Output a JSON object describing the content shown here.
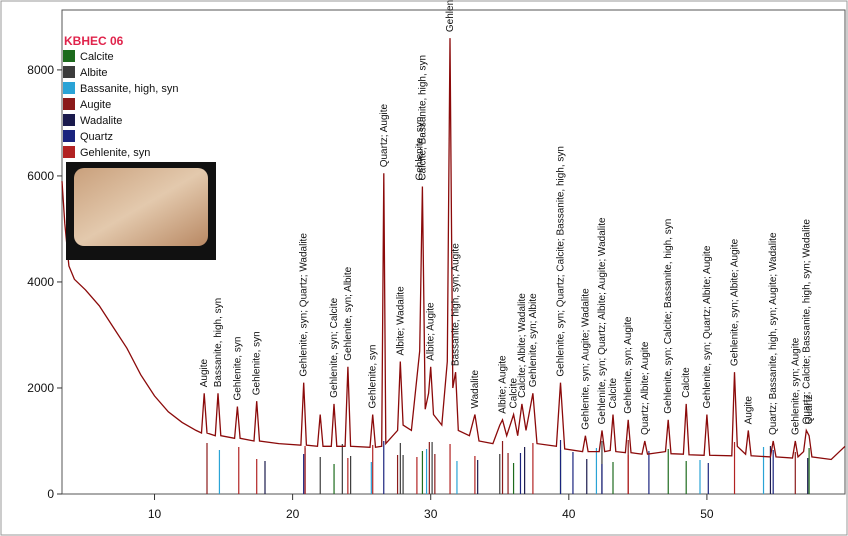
{
  "chart_data": {
    "type": "line",
    "title": "KBHEC 06",
    "xlim": [
      3.3,
      60
    ],
    "ylim": [
      0,
      9130
    ],
    "xticks": [
      10,
      20,
      30,
      40,
      50
    ],
    "yticks": [
      0,
      2000,
      4000,
      6000,
      8000
    ],
    "x": [
      3.3,
      3.5,
      3.8,
      4.2,
      5,
      6,
      7,
      8,
      9,
      10,
      11,
      12,
      13,
      13.4,
      13.6,
      13.8,
      14.4,
      14.6,
      14.8,
      15.8,
      16.0,
      16.2,
      17.2,
      17.4,
      17.6,
      19,
      20.6,
      20.8,
      21.0,
      21.8,
      22.0,
      22.2,
      22.8,
      23.0,
      23.2,
      23.8,
      24.0,
      24.2,
      25.6,
      25.8,
      26.0,
      26.45,
      26.6,
      26.75,
      27.6,
      27.8,
      28.0,
      28.6,
      29.2,
      29.4,
      29.6,
      29.85,
      30.0,
      30.2,
      30.8,
      31.2,
      31.4,
      31.6,
      31.8,
      32.0,
      32.8,
      33.2,
      33.5,
      34.5,
      35.0,
      35.2,
      35.5,
      36.0,
      36.3,
      36.6,
      36.9,
      37.4,
      37.7,
      39.1,
      39.4,
      39.7,
      41.0,
      41.2,
      41.4,
      42.2,
      42.4,
      42.6,
      43.0,
      43.2,
      43.4,
      44.1,
      44.3,
      44.5,
      45.3,
      45.5,
      45.7,
      47.0,
      47.2,
      47.4,
      48.3,
      48.5,
      48.7,
      49.8,
      50.0,
      50.2,
      51.8,
      52.0,
      52.2,
      52.8,
      53.0,
      53.2,
      54.6,
      54.8,
      55.0,
      56.2,
      56.4,
      56.6,
      57.0,
      57.2,
      57.4,
      57.6,
      59,
      60
    ],
    "series": [
      {
        "color": "#8b0a0a",
        "values": [
          5900,
          5100,
          4300,
          4050,
          3850,
          3550,
          3150,
          2750,
          2250,
          1850,
          1550,
          1350,
          1200,
          1150,
          1900,
          1150,
          1100,
          1900,
          1100,
          1050,
          1650,
          1050,
          1000,
          1750,
          1000,
          950,
          920,
          2100,
          920,
          900,
          1500,
          900,
          900,
          1700,
          900,
          900,
          2400,
          900,
          880,
          1500,
          880,
          900,
          6050,
          950,
          1200,
          2500,
          1300,
          1200,
          2700,
          5800,
          1600,
          1900,
          2400,
          1500,
          1300,
          2500,
          8600,
          2000,
          2300,
          1200,
          1100,
          1500,
          1000,
          950,
          1300,
          1400,
          1100,
          1500,
          1100,
          1700,
          1200,
          1900,
          950,
          900,
          2100,
          850,
          800,
          1100,
          800,
          800,
          1200,
          800,
          820,
          1500,
          800,
          780,
          1400,
          780,
          750,
          1000,
          750,
          800,
          1400,
          760,
          750,
          1700,
          740,
          730,
          1500,
          730,
          720,
          2300,
          900,
          750,
          1200,
          720,
          700,
          1000,
          700,
          680,
          1000,
          700,
          800,
          1200,
          1100,
          700,
          650,
          900
        ]
      }
    ],
    "phases": [
      {
        "name": "Calcite",
        "color": "#1d6b1d",
        "positions": [
          23.0,
          29.4,
          36.0,
          39.4,
          43.2,
          47.2,
          48.5,
          57.4
        ]
      },
      {
        "name": "Albite",
        "color": "#3c3c3c",
        "positions": [
          22.0,
          23.6,
          24.2,
          27.8,
          28.0,
          30.1,
          35.0,
          42.4
        ]
      },
      {
        "name": "Bassanite, high, syn",
        "color": "#2aa3d6",
        "positions": [
          14.7,
          25.7,
          29.7,
          31.9,
          42.0,
          49.5,
          54.1
        ]
      },
      {
        "name": "Augite",
        "color": "#8b1a1a",
        "positions": [
          13.8,
          27.6,
          29.9,
          30.3,
          35.2,
          35.6,
          44.3,
          56.4
        ]
      },
      {
        "name": "Wadalite",
        "color": "#1a1a4d",
        "positions": [
          18.0,
          20.9,
          33.4,
          36.8,
          41.3,
          54.6,
          57.3
        ]
      },
      {
        "name": "Quartz",
        "color": "#1a237e",
        "positions": [
          20.8,
          26.6,
          36.5,
          39.4,
          40.3,
          42.4,
          45.8,
          50.1,
          54.8
        ]
      },
      {
        "name": "Gehlenite, syn",
        "color": "#b22222",
        "positions": [
          16.1,
          17.4,
          20.9,
          24.0,
          25.8,
          29.0,
          31.4,
          33.2,
          37.4,
          44.3,
          52.0
        ]
      }
    ],
    "annotations": [
      {
        "x": 13.6,
        "label": "Augite"
      },
      {
        "x": 14.6,
        "label": "Bassanite, high, syn"
      },
      {
        "x": 16.0,
        "label": "Gehlenite, syn"
      },
      {
        "x": 17.4,
        "label": "Gehlenite, syn"
      },
      {
        "x": 20.8,
        "label": "Gehlenite, syn; Quartz; Wadalite"
      },
      {
        "x": 23.0,
        "label": "Gehlenite, syn; Calcite"
      },
      {
        "x": 24.0,
        "label": "Gehlenite, syn; Albite"
      },
      {
        "x": 25.8,
        "label": "Gehlenite, syn"
      },
      {
        "x": 26.6,
        "label": "Quartz; Augite"
      },
      {
        "x": 27.8,
        "label": "Albite; Wadalite"
      },
      {
        "x": 29.2,
        "label": "Gehlenite, syn"
      },
      {
        "x": 29.4,
        "label": "Calcite; Bassanite, high, syn"
      },
      {
        "x": 30.0,
        "label": "Albite; Augite"
      },
      {
        "x": 31.4,
        "label": "Gehlenite, syn; Calcite; Albite"
      },
      {
        "x": 31.8,
        "label": "Bassanite, high, syn; Augite"
      },
      {
        "x": 33.2,
        "label": "Wadalite"
      },
      {
        "x": 35.2,
        "label": "Albite; Augite"
      },
      {
        "x": 36.0,
        "label": "Calcite"
      },
      {
        "x": 36.6,
        "label": "Calcite; Albite; Wadalite"
      },
      {
        "x": 37.4,
        "label": "Gehlenite, syn; Albite"
      },
      {
        "x": 39.4,
        "label": "Gehlenite, syn; Quartz; Calcite; Bassanite, high, syn"
      },
      {
        "x": 41.2,
        "label": "Gehlenite, syn; Augite; Wadalite"
      },
      {
        "x": 42.4,
        "label": "Gehlenite, syn; Quartz; Albite; Augite; Wadalite"
      },
      {
        "x": 43.2,
        "label": "Calcite"
      },
      {
        "x": 44.3,
        "label": "Gehlenite, syn; Augite"
      },
      {
        "x": 45.5,
        "label": "Quartz; Albite; Augite"
      },
      {
        "x": 47.2,
        "label": "Gehlenite, syn; Calcite; Bassanite, high, syn"
      },
      {
        "x": 48.5,
        "label": "Calcite"
      },
      {
        "x": 50.0,
        "label": "Gehlenite, syn; Quartz; Albite; Augite"
      },
      {
        "x": 52.0,
        "label": "Gehlenite, syn; Albite; Augite"
      },
      {
        "x": 53.0,
        "label": "Augite"
      },
      {
        "x": 54.8,
        "label": "Quartz; Bassanite, high, syn; Augite; Wadalite"
      },
      {
        "x": 56.4,
        "label": "Gehlenite, syn; Augite"
      },
      {
        "x": 57.2,
        "label": "Quartz; Calcite; Bassanite, high, syn; Wadalite"
      },
      {
        "x": 57.4,
        "label": "Quartz"
      }
    ]
  }
}
